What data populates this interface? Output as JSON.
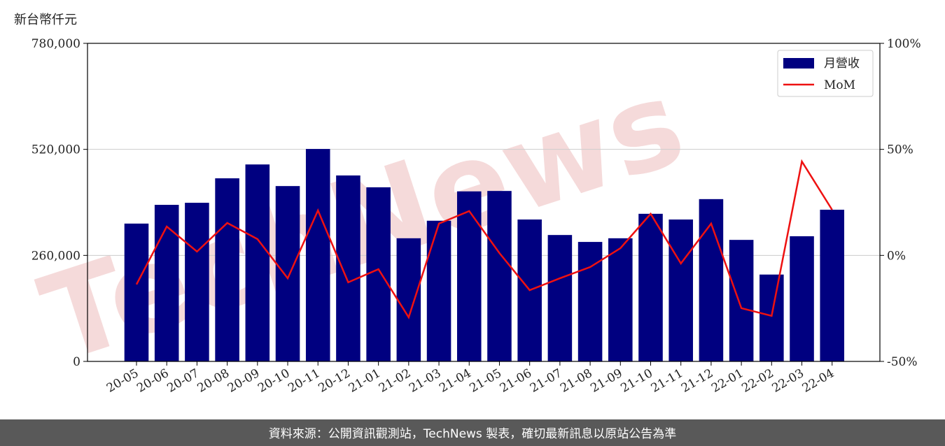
{
  "chart_data": {
    "type": "bar",
    "ylabel": "新台幣仟元",
    "watermark": "TechNews",
    "footer": "資料來源：公開資訊觀測站，TechNews 製表，確切最新訊息以原站公告為準",
    "categories": [
      "20-05",
      "20-06",
      "20-07",
      "20-08",
      "20-09",
      "20-10",
      "20-11",
      "20-12",
      "21-01",
      "21-02",
      "21-03",
      "21-04",
      "21-05",
      "21-06",
      "21-07",
      "21-08",
      "21-09",
      "21-10",
      "21-11",
      "21-12",
      "22-01",
      "22-02",
      "22-03",
      "22-04"
    ],
    "series": [
      {
        "name": "月營收",
        "type": "bar",
        "color": "#000080",
        "values": [
          338000,
          384000,
          389000,
          449000,
          483000,
          430000,
          521000,
          456000,
          427000,
          302000,
          345000,
          417000,
          418000,
          348000,
          310000,
          293000,
          302000,
          362000,
          348000,
          398000,
          298000,
          213000,
          307000,
          372000
        ]
      },
      {
        "name": "MoM",
        "type": "line",
        "axis": "y2",
        "color": "#ee1111",
        "values": [
          -13.7,
          13.6,
          1.8,
          15.3,
          7.7,
          -10.8,
          21.2,
          -12.7,
          -6.5,
          -29.2,
          15,
          20.9,
          1.1,
          -16.4,
          -10.8,
          -5.5,
          3.4,
          19.6,
          -3.8,
          15,
          -24.9,
          -28.5,
          44.3,
          21.5
        ]
      }
    ],
    "ylim": [
      0,
      780000
    ],
    "yticks": [
      0,
      {
        "value": 260000,
        "label": "260,000"
      },
      {
        "value": 520000,
        "label": "520,000"
      },
      {
        "value": 780000,
        "label": "780,000"
      }
    ],
    "y2lim": [
      -50,
      100
    ],
    "y2ticks": [
      {
        "value": -50,
        "label": "-50%"
      },
      {
        "value": 0,
        "label": "0%"
      },
      {
        "value": 50,
        "label": "50%"
      },
      {
        "value": 100,
        "label": "100%"
      }
    ],
    "grid": true,
    "legend": "upper right"
  }
}
